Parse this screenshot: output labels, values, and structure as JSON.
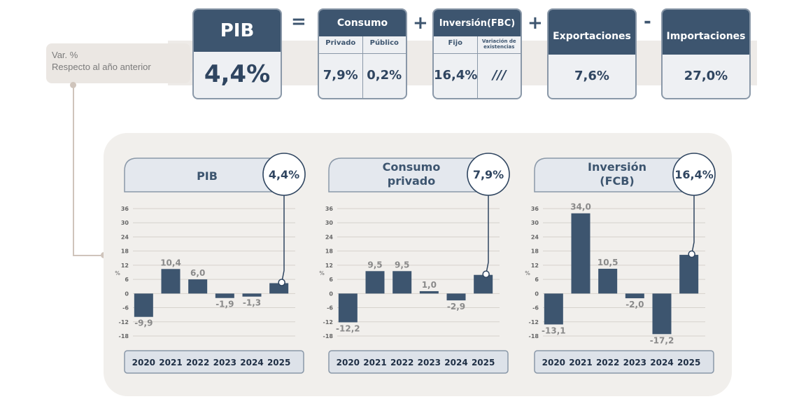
{
  "top": {
    "var_label": "Var. %",
    "var_sub": "Respecto al año anterior",
    "pib": {
      "label": "PIB",
      "value": "4,4%"
    },
    "eq": "=",
    "consumo": {
      "label": "Consumo",
      "sub": [
        "Privado",
        "Público"
      ],
      "values": [
        "7,9%",
        "0,2%"
      ]
    },
    "plus1": "+",
    "inversion": {
      "label": "Inversión(FBC)",
      "sub": [
        "Fijo",
        "Variación de existencias"
      ],
      "values": [
        "16,4%",
        "///"
      ]
    },
    "plus2": "+",
    "exportaciones": {
      "label": "Exportaciones",
      "value": "7,6%"
    },
    "minus": "-",
    "importaciones": {
      "label": "Importaciones",
      "value": "27,0%"
    }
  },
  "colors": {
    "bar": "#3d556f",
    "text": "#2f4560",
    "label": "#8a8a8a",
    "panel": "#f1efec",
    "band": "#eeebe8"
  },
  "chart_data": [
    {
      "type": "bar",
      "title": "PIB",
      "badge": "4,4%",
      "ylabel": "%",
      "categories": [
        "2020",
        "2021",
        "2022",
        "2023",
        "2024",
        "2025"
      ],
      "values": [
        -9.9,
        10.4,
        6.0,
        -1.9,
        -1.3,
        4.4
      ],
      "labels": [
        "-9,9",
        "10,4",
        "6,0",
        "-1,9",
        "-1,3",
        ""
      ],
      "ylim": [
        -18,
        36
      ],
      "yticks": [
        36,
        30,
        24,
        18,
        12,
        6,
        0,
        -6,
        -12,
        -18
      ],
      "grid": true
    },
    {
      "type": "bar",
      "title": "Consumo privado",
      "title_lines": [
        "Consumo",
        "privado"
      ],
      "badge": "7,9%",
      "ylabel": "%",
      "categories": [
        "2020",
        "2021",
        "2022",
        "2023",
        "2024",
        "2025"
      ],
      "values": [
        -12.2,
        9.5,
        9.5,
        1.0,
        -2.9,
        7.9
      ],
      "labels": [
        "-12,2",
        "9,5",
        "9,5",
        "1,0",
        "-2,9",
        ""
      ],
      "ylim": [
        -18,
        36
      ],
      "yticks": [
        36,
        30,
        24,
        18,
        12,
        6,
        0,
        -6,
        -12,
        -18
      ],
      "grid": true
    },
    {
      "type": "bar",
      "title": "Inversión (FCB)",
      "title_lines": [
        "Inversión",
        "(FCB)"
      ],
      "badge": "16,4%",
      "ylabel": "%",
      "categories": [
        "2020",
        "2021",
        "2022",
        "2023",
        "2024",
        "2025"
      ],
      "values": [
        -13.1,
        34.0,
        10.5,
        -2.0,
        -17.2,
        16.4
      ],
      "labels": [
        "-13,1",
        "34,0",
        "10,5",
        "-2,0",
        "-17,2",
        ""
      ],
      "ylim": [
        -18,
        36
      ],
      "yticks": [
        36,
        30,
        24,
        18,
        12,
        6,
        0,
        -6,
        -12,
        -18
      ],
      "grid": true
    }
  ]
}
